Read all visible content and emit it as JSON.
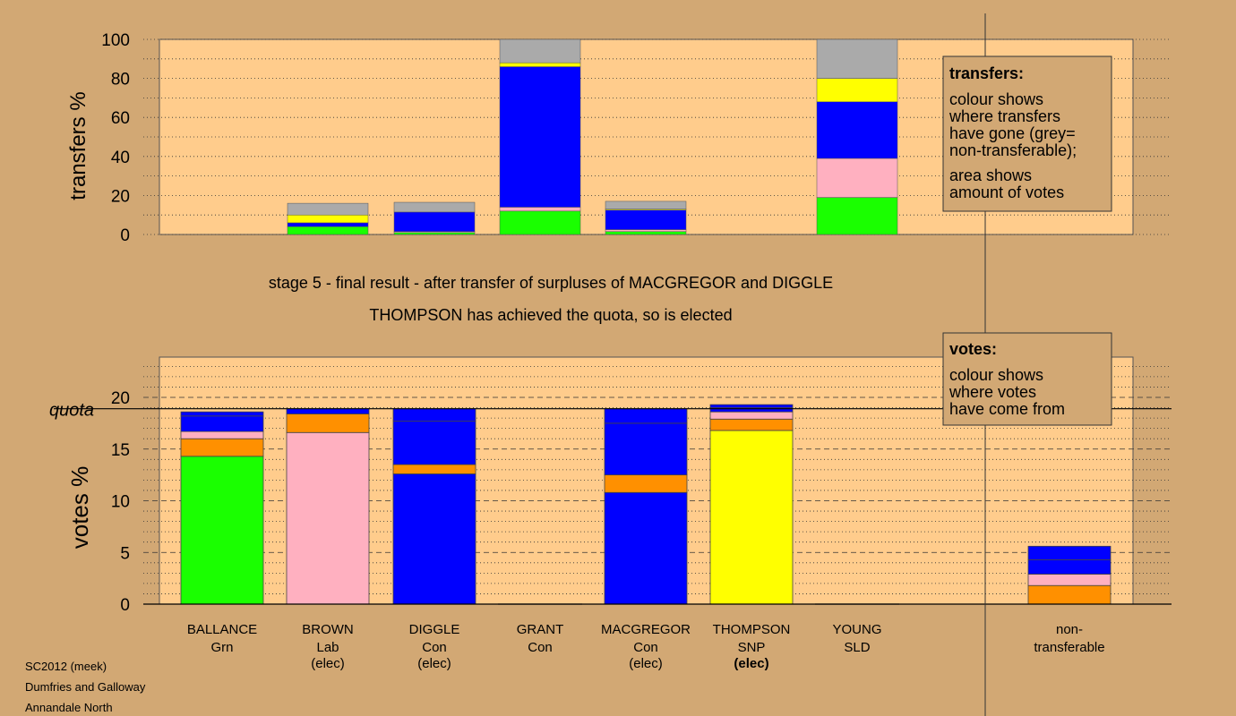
{
  "colors": {
    "background": "#D2A874",
    "plot_bg": "#FFCC8C",
    "green": "#1AFF00",
    "pink": "#FFB0C0",
    "orange": "#FF9000",
    "blue": "#0000FF",
    "yellow": "#FFFF00",
    "grey": "#AAAAAA"
  },
  "transfers_legend": {
    "title": "transfers:",
    "line1": "colour shows",
    "line2": "where transfers",
    "line3": "have gone (grey=",
    "line4": "non-transferable);",
    "line5": "area shows",
    "line6": "amount of votes"
  },
  "votes_legend": {
    "title": "votes:",
    "line1": "colour shows",
    "line2": "where votes",
    "line3": "have come from"
  },
  "stage_title": "stage 5 - final result - after transfer of surpluses of MACGREGOR and DIGGLE",
  "stage_subtitle": "THOMPSON has achieved the quota, so is elected",
  "footer": {
    "line1": "SC2012 (meek)",
    "line2": "Dumfries and Galloway",
    "line3": "Annandale North"
  },
  "chart_data": [
    {
      "type": "bar",
      "stacked": true,
      "ylabel": "transfers %",
      "ylim": [
        0,
        100
      ],
      "yticks": [
        "0",
        "20",
        "40",
        "60",
        "80",
        "100"
      ],
      "categories": [
        "BALLANCE",
        "BROWN",
        "DIGGLE",
        "GRANT",
        "MACGREGOR",
        "THOMPSON",
        "YOUNG"
      ],
      "segments": [
        [],
        [
          {
            "color": "green",
            "value": 4
          },
          {
            "color": "blue",
            "value": 2
          },
          {
            "color": "yellow",
            "value": 4
          },
          {
            "color": "grey",
            "value": 6
          }
        ],
        [
          {
            "color": "green",
            "value": 1
          },
          {
            "color": "pink",
            "value": 0.5
          },
          {
            "color": "blue",
            "value": 10
          },
          {
            "color": "grey",
            "value": 5
          }
        ],
        [
          {
            "color": "green",
            "value": 12
          },
          {
            "color": "pink",
            "value": 2
          },
          {
            "color": "blue",
            "value": 72
          },
          {
            "color": "yellow",
            "value": 2
          },
          {
            "color": "grey",
            "value": 12
          }
        ],
        [
          {
            "color": "green",
            "value": 1.5
          },
          {
            "color": "pink",
            "value": 1
          },
          {
            "color": "blue",
            "value": 10
          },
          {
            "color": "yellow",
            "value": 0.5
          },
          {
            "color": "grey",
            "value": 4
          }
        ],
        [],
        [
          {
            "color": "green",
            "value": 19
          },
          {
            "color": "pink",
            "value": 20
          },
          {
            "color": "blue",
            "value": 29
          },
          {
            "color": "yellow",
            "value": 12
          },
          {
            "color": "grey",
            "value": 20
          }
        ]
      ]
    },
    {
      "type": "bar",
      "stacked": true,
      "ylabel": "votes %",
      "ylim": [
        0,
        24
      ],
      "yticks": [
        "0",
        "5",
        "10",
        "15",
        "20"
      ],
      "quota": 18.9,
      "quota_label": "quota",
      "categories": [
        {
          "name": "BALLANCE",
          "party": "Grn",
          "status": ""
        },
        {
          "name": "BROWN",
          "party": "Lab",
          "status": "(elec)"
        },
        {
          "name": "DIGGLE",
          "party": "Con",
          "status": "(elec)"
        },
        {
          "name": "GRANT",
          "party": "Con",
          "status": ""
        },
        {
          "name": "MACGREGOR",
          "party": "Con",
          "status": "(elec)"
        },
        {
          "name": "THOMPSON",
          "party": "SNP",
          "status": "(elec)"
        },
        {
          "name": "YOUNG",
          "party": "SLD",
          "status": ""
        },
        {
          "name": "non-",
          "party": "transferable",
          "status": ""
        }
      ],
      "segments": [
        [
          {
            "color": "green",
            "value": 14.3
          },
          {
            "color": "orange",
            "value": 1.7
          },
          {
            "color": "pink",
            "value": 0.7
          },
          {
            "color": "blue",
            "value": 1.5
          },
          {
            "color": "blue",
            "value": 0.4
          }
        ],
        [
          {
            "color": "pink",
            "value": 16.6
          },
          {
            "color": "orange",
            "value": 1.8
          },
          {
            "color": "blue",
            "value": 0.5
          }
        ],
        [
          {
            "color": "blue",
            "value": 12.6
          },
          {
            "color": "orange",
            "value": 0.9
          },
          {
            "color": "blue",
            "value": 4.2
          },
          {
            "color": "blue",
            "value": 1.2
          }
        ],
        [],
        [
          {
            "color": "blue",
            "value": 10.8
          },
          {
            "color": "orange",
            "value": 1.7
          },
          {
            "color": "blue",
            "value": 5.0
          },
          {
            "color": "blue",
            "value": 1.4
          }
        ],
        [
          {
            "color": "yellow",
            "value": 16.8
          },
          {
            "color": "orange",
            "value": 1.1
          },
          {
            "color": "pink",
            "value": 0.7
          },
          {
            "color": "blue",
            "value": 0.4
          },
          {
            "color": "blue",
            "value": 0.3
          }
        ],
        [],
        [
          {
            "color": "orange",
            "value": 1.8
          },
          {
            "color": "pink",
            "value": 1.1
          },
          {
            "color": "blue",
            "value": 1.4
          },
          {
            "color": "blue",
            "value": 1.3
          }
        ]
      ]
    }
  ]
}
